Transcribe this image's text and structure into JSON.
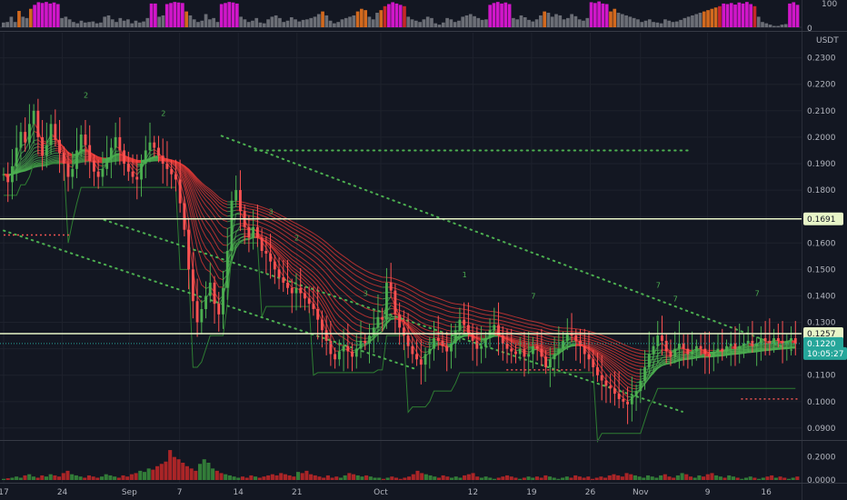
{
  "chart_data": [
    {
      "type": "bar",
      "pane": "indicator",
      "y_ticks": [
        "100",
        "0"
      ],
      "ylim": [
        0,
        100
      ],
      "values": [
        18,
        20,
        40,
        20,
        62,
        40,
        35,
        70,
        85,
        95,
        92,
        96,
        90,
        94,
        88,
        35,
        40,
        30,
        20,
        15,
        25,
        18,
        20,
        22,
        15,
        18,
        40,
        45,
        30,
        20,
        35,
        25,
        30,
        15,
        25,
        18,
        22,
        35,
        90,
        90,
        40,
        45,
        88,
        92,
        96,
        94,
        92,
        60,
        45,
        30,
        20,
        25,
        50,
        30,
        35,
        20,
        88,
        92,
        96,
        94,
        90,
        40,
        30,
        20,
        25,
        35,
        18,
        15,
        30,
        40,
        45,
        35,
        20,
        25,
        38,
        30,
        22,
        28,
        30,
        35,
        40,
        50,
        60,
        45,
        25,
        15,
        20,
        30,
        35,
        40,
        45,
        60,
        70,
        65,
        40,
        30,
        55,
        65,
        80,
        88,
        95,
        90,
        85,
        80,
        40,
        30,
        25,
        20,
        30,
        40,
        35,
        15,
        10,
        18,
        35,
        30,
        20,
        25,
        40,
        45,
        50,
        42,
        35,
        28,
        30,
        85,
        92,
        96,
        90,
        94,
        88,
        35,
        30,
        45,
        38,
        28,
        22,
        30,
        45,
        60,
        55,
        40,
        50,
        45,
        30,
        35,
        50,
        42,
        30,
        25,
        35,
        95,
        92,
        98,
        90,
        88,
        60,
        70,
        55,
        50,
        45,
        40,
        35,
        30,
        20,
        25,
        30,
        20,
        18,
        15,
        30,
        25,
        20,
        22,
        28,
        35,
        40,
        45,
        50,
        55,
        60,
        65,
        70,
        75,
        80,
        90,
        88,
        92,
        86,
        94,
        90,
        96,
        88,
        80,
        40,
        20,
        15,
        10,
        5,
        5,
        10,
        12,
        90,
        95,
        85
      ],
      "colors": {
        "magenta": "#d016c9",
        "orange": "#d2691e",
        "red": "#c62828",
        "gray": "#6b6e76"
      }
    },
    {
      "type": "candlestick",
      "pane": "price",
      "unit": "USDT",
      "ylim": [
        0.0855,
        0.2395
      ],
      "y_ticks": [
        "0.2300",
        "0.2200",
        "0.2100",
        "0.2000",
        "0.1900",
        "0.1800",
        "0.1700",
        "0.1600",
        "0.1500",
        "0.1400",
        "0.1300",
        "0.1200",
        "0.1100",
        "0.1000",
        "0.0900"
      ],
      "y_tick_values": [
        0.23,
        0.22,
        0.21,
        0.2,
        0.19,
        0.18,
        0.17,
        0.16,
        0.15,
        0.14,
        0.13,
        0.12,
        0.11,
        0.1,
        0.09
      ],
      "x_labels": [
        "17",
        "24",
        "Sep",
        "7",
        "14",
        "21",
        "Oct",
        "12",
        "19",
        "26",
        "Nov",
        "9",
        "16"
      ],
      "x_label_days": [
        0,
        7,
        15,
        21,
        28,
        35,
        45,
        56,
        63,
        70,
        76,
        84,
        91
      ],
      "days_visible": 95,
      "closes": [
        0.186,
        0.183,
        0.189,
        0.196,
        0.202,
        0.198,
        0.205,
        0.21,
        0.2,
        0.193,
        0.197,
        0.205,
        0.199,
        0.194,
        0.19,
        0.185,
        0.188,
        0.195,
        0.201,
        0.197,
        0.191,
        0.187,
        0.185,
        0.188,
        0.192,
        0.196,
        0.2,
        0.195,
        0.19,
        0.187,
        0.185,
        0.184,
        0.19,
        0.195,
        0.198,
        0.196,
        0.193,
        0.19,
        0.188,
        0.186,
        0.184,
        0.175,
        0.165,
        0.15,
        0.138,
        0.13,
        0.135,
        0.14,
        0.145,
        0.137,
        0.133,
        0.143,
        0.157,
        0.176,
        0.18,
        0.172,
        0.166,
        0.162,
        0.166,
        0.162,
        0.157,
        0.156,
        0.153,
        0.15,
        0.147,
        0.145,
        0.143,
        0.141,
        0.143,
        0.141,
        0.139,
        0.137,
        0.135,
        0.131,
        0.127,
        0.123,
        0.118,
        0.116,
        0.119,
        0.121,
        0.119,
        0.117,
        0.12,
        0.123,
        0.122,
        0.125,
        0.128,
        0.132,
        0.131,
        0.145,
        0.142,
        0.133,
        0.128,
        0.125,
        0.121,
        0.118,
        0.116,
        0.114,
        0.118,
        0.12,
        0.124,
        0.123,
        0.121,
        0.119,
        0.122,
        0.127,
        0.131,
        0.129,
        0.126,
        0.123,
        0.12,
        0.121,
        0.124,
        0.127,
        0.129,
        0.125,
        0.122,
        0.12,
        0.119,
        0.118,
        0.12,
        0.117,
        0.118,
        0.121,
        0.12,
        0.117,
        0.113,
        0.116,
        0.118,
        0.12,
        0.123,
        0.126,
        0.125,
        0.123,
        0.121,
        0.118,
        0.116,
        0.113,
        0.11,
        0.108,
        0.106,
        0.105,
        0.103,
        0.101,
        0.1,
        0.099,
        0.102,
        0.104,
        0.108,
        0.113,
        0.118,
        0.121,
        0.125,
        0.123,
        0.119,
        0.117,
        0.12,
        0.122,
        0.12,
        0.118,
        0.119,
        0.121,
        0.12,
        0.118,
        0.117,
        0.119,
        0.12,
        0.119,
        0.121,
        0.122,
        0.12,
        0.121,
        0.122,
        0.123,
        0.121,
        0.122,
        0.124,
        0.123,
        0.122,
        0.124,
        0.123,
        0.122,
        0.123,
        0.124,
        0.122
      ],
      "candle_colors": {
        "up": "#26a69a",
        "down": "#ef5350",
        "up_bright": "#4caf50",
        "down_bright": "#ff5252"
      },
      "hlines": [
        {
          "label": "0.1691",
          "value": 0.1691,
          "color": "#e8f5c8"
        },
        {
          "label": "0.1257",
          "value": 0.1257,
          "color": "#e8f5c8"
        }
      ],
      "price_tags": [
        {
          "label": "0.1220",
          "value": 0.122,
          "color": "#26a69a"
        },
        {
          "label": "10:05:27",
          "value": 0.1182,
          "color": "#26a69a"
        }
      ],
      "resistance_dotted": {
        "value": 0.195,
        "from_day": 30,
        "to_day": 82,
        "color": "#4caf50"
      },
      "red_dotted": [
        {
          "value": 0.163,
          "from_day": 0,
          "to_day": 8
        },
        {
          "value": 0.112,
          "from_day": 60,
          "to_day": 69
        },
        {
          "value": 0.101,
          "from_day": 88,
          "to_day": 95
        }
      ],
      "channel_lines": [
        {
          "from": [
            26,
            0.2005
          ],
          "to": [
            94,
            0.1195
          ],
          "color": "#4caf50"
        },
        {
          "from": [
            12,
            0.1687
          ],
          "to": [
            81,
            0.0962
          ],
          "color": "#4caf50"
        },
        {
          "from": [
            0,
            0.1647
          ],
          "to": [
            49,
            0.1125
          ],
          "color": "#4caf50"
        }
      ],
      "ribbon_colors": {
        "green": "#4caf50",
        "red": "#e53935"
      },
      "seq_labels": [
        "2",
        "2",
        "3",
        "3",
        "1",
        "7",
        "7",
        "2",
        "7",
        "7"
      ]
    },
    {
      "type": "bar",
      "pane": "volume",
      "y_ticks": [
        "0.2000",
        "0.0000"
      ],
      "ylim": [
        0,
        0.3
      ],
      "values": [
        0.01,
        0.015,
        0.02,
        0.03,
        0.02,
        0.04,
        0.05,
        0.03,
        0.02,
        0.04,
        0.03,
        0.05,
        0.04,
        0.03,
        0.06,
        0.08,
        0.05,
        0.04,
        0.03,
        0.02,
        0.04,
        0.03,
        0.02,
        0.03,
        0.05,
        0.04,
        0.03,
        0.02,
        0.04,
        0.03,
        0.05,
        0.06,
        0.08,
        0.07,
        0.1,
        0.09,
        0.12,
        0.14,
        0.16,
        0.26,
        0.2,
        0.18,
        0.15,
        0.12,
        0.1,
        0.08,
        0.14,
        0.18,
        0.15,
        0.1,
        0.08,
        0.06,
        0.05,
        0.04,
        0.03,
        0.02,
        0.03,
        0.02,
        0.04,
        0.03,
        0.02,
        0.03,
        0.04,
        0.05,
        0.04,
        0.06,
        0.05,
        0.04,
        0.03,
        0.07,
        0.06,
        0.08,
        0.05,
        0.04,
        0.03,
        0.02,
        0.04,
        0.02,
        0.03,
        0.02,
        0.04,
        0.06,
        0.05,
        0.04,
        0.03,
        0.04,
        0.03,
        0.02,
        0.02,
        0.01,
        0.02,
        0.03,
        0.02,
        0.01,
        0.02,
        0.03,
        0.05,
        0.08,
        0.06,
        0.05,
        0.04,
        0.03,
        0.02,
        0.04,
        0.03,
        0.02,
        0.03,
        0.02,
        0.04,
        0.05,
        0.06,
        0.03,
        0.02,
        0.03,
        0.02,
        0.01,
        0.02,
        0.03,
        0.04,
        0.03,
        0.02,
        0.01,
        0.02,
        0.03,
        0.02,
        0.03,
        0.02,
        0.04,
        0.03,
        0.02,
        0.01,
        0.02,
        0.03,
        0.02,
        0.04,
        0.03,
        0.02,
        0.03,
        0.01,
        0.02,
        0.03,
        0.02,
        0.04,
        0.05,
        0.04,
        0.03,
        0.06,
        0.05,
        0.04,
        0.03,
        0.02,
        0.04,
        0.03,
        0.02,
        0.04,
        0.05,
        0.03,
        0.02,
        0.04,
        0.06,
        0.05,
        0.03,
        0.02,
        0.04,
        0.03,
        0.05,
        0.06,
        0.04,
        0.03,
        0.02,
        0.04,
        0.03,
        0.02,
        0.01,
        0.02,
        0.03,
        0.02,
        0.01,
        0.02,
        0.03,
        0.04,
        0.02,
        0.03,
        0.02,
        0.01,
        0.02,
        0.03
      ]
    }
  ]
}
